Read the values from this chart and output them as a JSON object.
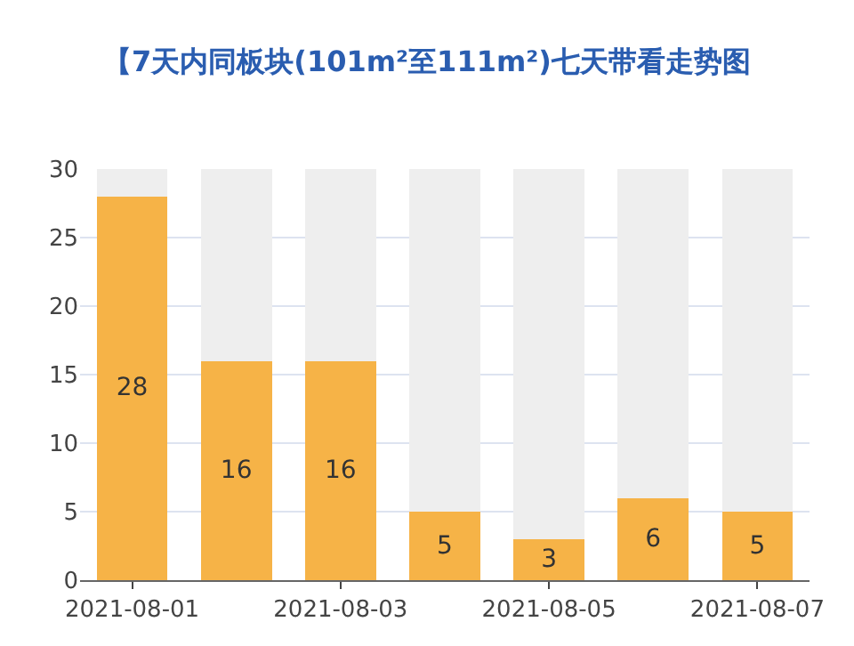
{
  "chart_data": {
    "type": "bar",
    "title": "【7天内同板块(101m²至111m²)七天带看走势图",
    "categories": [
      "2021-08-01",
      null,
      "2021-08-03",
      null,
      "2021-08-05",
      null,
      "2021-08-07"
    ],
    "stacked": true,
    "series": [
      {
        "color": "#f6b347",
        "values": [
          28,
          16,
          16,
          5,
          3,
          6,
          5
        ],
        "data_labels": true
      },
      {
        "color": "#eeeeee",
        "values": [
          2,
          14,
          14,
          25,
          27,
          24,
          25
        ]
      }
    ],
    "ylim": [
      0,
      30
    ],
    "yticks": [
      0,
      5,
      10,
      15,
      20,
      25,
      30
    ],
    "grid": "y"
  }
}
